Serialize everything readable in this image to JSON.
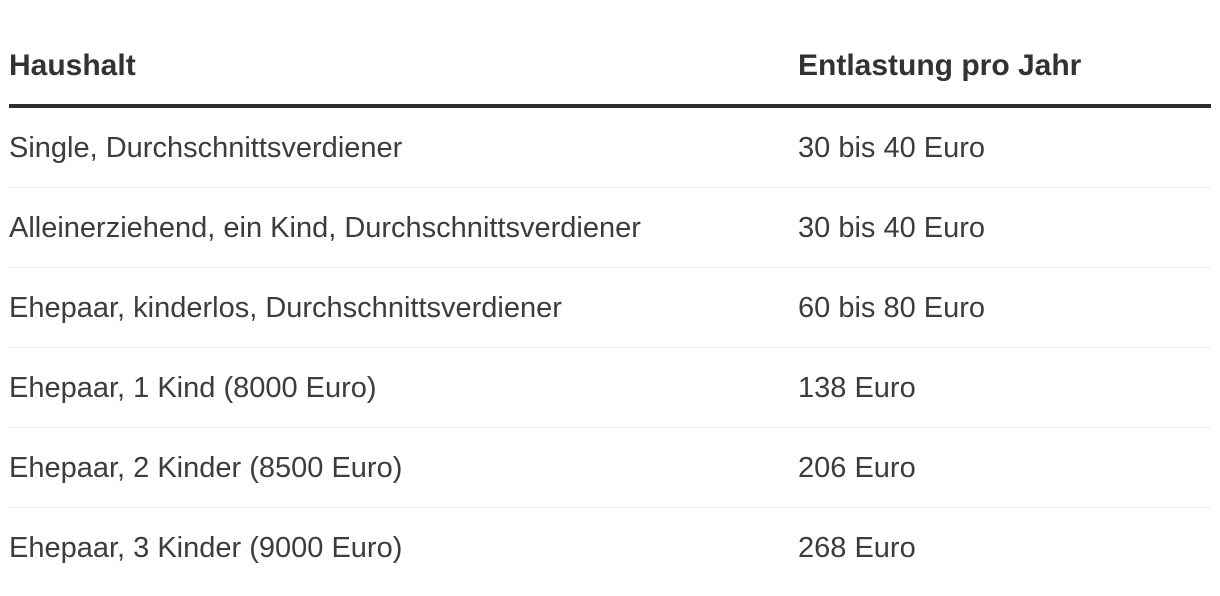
{
  "colors": {
    "background": "#ffffff",
    "body_text": "#3c3c3c",
    "header_text": "#323232",
    "header_rule": "#2d2d2d",
    "row_divider": "#ececec"
  },
  "chart_data": {
    "type": "table",
    "title": "",
    "columns": [
      "Haushalt",
      "Entlastung pro Jahr"
    ],
    "rows": [
      [
        "Single, Durchschnittsverdiener",
        "30 bis 40 Euro"
      ],
      [
        "Alleinerziehend, ein Kind, Durchschnittsverdiener",
        "30 bis 40 Euro"
      ],
      [
        "Ehepaar, kinderlos, Durchschnittsverdiener",
        "60 bis 80 Euro"
      ],
      [
        "Ehepaar, 1 Kind (8000 Euro)",
        "138 Euro"
      ],
      [
        "Ehepaar, 2 Kinder (8500 Euro)",
        "206 Euro"
      ],
      [
        "Ehepaar, 3 Kinder (9000 Euro)",
        "268 Euro"
      ]
    ]
  }
}
